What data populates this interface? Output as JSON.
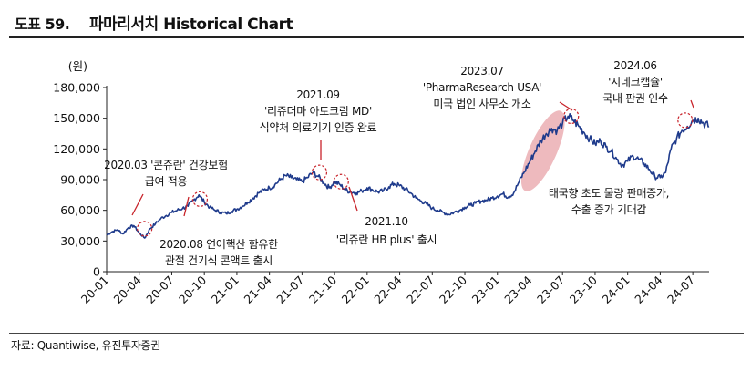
{
  "figure": {
    "number": "도표 59.",
    "title": "파마리서치 Historical Chart",
    "source": "자료: Quantiwise, 유진투자증권"
  },
  "colors": {
    "line": "#1f3b8c",
    "highlight": "#e8a3a8",
    "marker": "#c8242b",
    "axis": "#222222"
  },
  "chart_data": {
    "type": "line",
    "ylabel": "(원)",
    "ylim": [
      0,
      180000
    ],
    "y_ticks": [
      "0",
      "30,000",
      "60,000",
      "90,000",
      "120,000",
      "150,000",
      "180,000"
    ],
    "y_tick_values": [
      0,
      30000,
      60000,
      90000,
      120000,
      150000,
      180000
    ],
    "x_tick_labels": [
      "20-01",
      "20-04",
      "20-07",
      "20-10",
      "21-01",
      "21-04",
      "21-07",
      "21-10",
      "22-01",
      "22-04",
      "22-07",
      "22-10",
      "23-01",
      "23-04",
      "23-07",
      "23-10",
      "24-01",
      "24-04",
      "24-07"
    ],
    "x_tick_positions": [
      0,
      3,
      6,
      9,
      12,
      15,
      18,
      21,
      24,
      27,
      30,
      33,
      36,
      39,
      42,
      45,
      48,
      51,
      54
    ],
    "x_range": [
      0,
      55.5
    ],
    "series": [
      {
        "x": [
          0,
          0.5,
          1,
          1.5,
          2,
          2.5,
          3,
          3.5,
          4,
          4.5,
          5,
          5.5,
          6,
          6.5,
          7,
          7.5,
          8,
          8.5,
          9,
          9.5,
          10,
          10.5,
          11,
          11.5,
          12,
          12.5,
          13,
          13.5,
          14,
          14.5,
          15,
          15.5,
          16,
          16.5,
          17,
          17.5,
          18,
          18.5,
          19,
          19.5,
          20,
          20.5,
          21,
          21.5,
          22,
          22.5,
          23,
          23.5,
          24,
          24.5,
          25,
          25.5,
          26,
          26.5,
          27,
          27.5,
          28,
          28.5,
          29,
          29.5,
          30,
          30.5,
          31,
          31.5,
          32,
          32.5,
          33,
          33.5,
          34,
          34.5,
          35,
          35.5,
          36,
          36.5,
          37,
          37.5,
          38,
          38.5,
          39,
          39.5,
          40,
          40.5,
          41,
          41.5,
          42,
          42.5,
          43,
          43.5,
          44,
          44.5,
          45,
          45.5,
          46,
          46.5,
          47,
          47.5,
          48,
          48.5,
          49,
          49.5,
          50,
          50.5,
          51,
          51.5,
          52,
          52.5,
          53,
          53.5,
          54,
          54.5,
          55,
          55.5
        ],
        "y": [
          36000,
          39000,
          41000,
          37000,
          43000,
          45000,
          38000,
          33000,
          42000,
          47000,
          52000,
          55000,
          58000,
          60000,
          62000,
          64000,
          70000,
          75000,
          68000,
          63000,
          60000,
          58000,
          57000,
          59000,
          61000,
          64000,
          68000,
          72000,
          77000,
          80000,
          82000,
          85000,
          90000,
          94000,
          92000,
          90000,
          88000,
          92000,
          97000,
          93000,
          87000,
          82000,
          88000,
          85000,
          80000,
          78000,
          77000,
          79000,
          82000,
          80000,
          78000,
          79000,
          83000,
          86000,
          84000,
          81000,
          77000,
          72000,
          69000,
          66000,
          62000,
          60000,
          58000,
          56000,
          58000,
          60000,
          63000,
          65000,
          67000,
          69000,
          70000,
          72000,
          74000,
          76000,
          73000,
          77000,
          88000,
          98000,
          108000,
          118000,
          128000,
          135000,
          140000,
          138000,
          145000,
          152000,
          148000,
          142000,
          136000,
          130000,
          125000,
          128000,
          122000,
          118000,
          110000,
          104000,
          108000,
          113000,
          110000,
          106000,
          100000,
          93000,
          92000,
          97000,
          120000,
          130000,
          138000,
          142000,
          148000,
          150000,
          145000,
          142000
        ]
      }
    ],
    "annotations": [
      {
        "id": "a1",
        "lines": [
          "2020.03 '콘쥬란' 건강보험",
          "급여 적용"
        ]
      },
      {
        "id": "a2",
        "lines": [
          "2020.08 연어핵산 함유한",
          "관절 건기식 콘액트 출시"
        ]
      },
      {
        "id": "a3",
        "lines": [
          "2021.09",
          "'리쥬더마 아토크림 MD'",
          "식약처 의료기기 인증 완료"
        ]
      },
      {
        "id": "a4",
        "lines": [
          "2021.10",
          "'리쥬란 HB plus' 출시"
        ]
      },
      {
        "id": "a5",
        "lines": [
          "2023.07",
          "'PharmaResearch USA'",
          "미국 법인 사무소 개소"
        ]
      },
      {
        "id": "a6",
        "lines": [
          "태국향 초도 물량 판매증가,",
          "수출 증가 기대감"
        ]
      },
      {
        "id": "a7",
        "lines": [
          "2024.06",
          "'시네크캡슐'",
          "국내 판권 인수"
        ]
      }
    ]
  }
}
